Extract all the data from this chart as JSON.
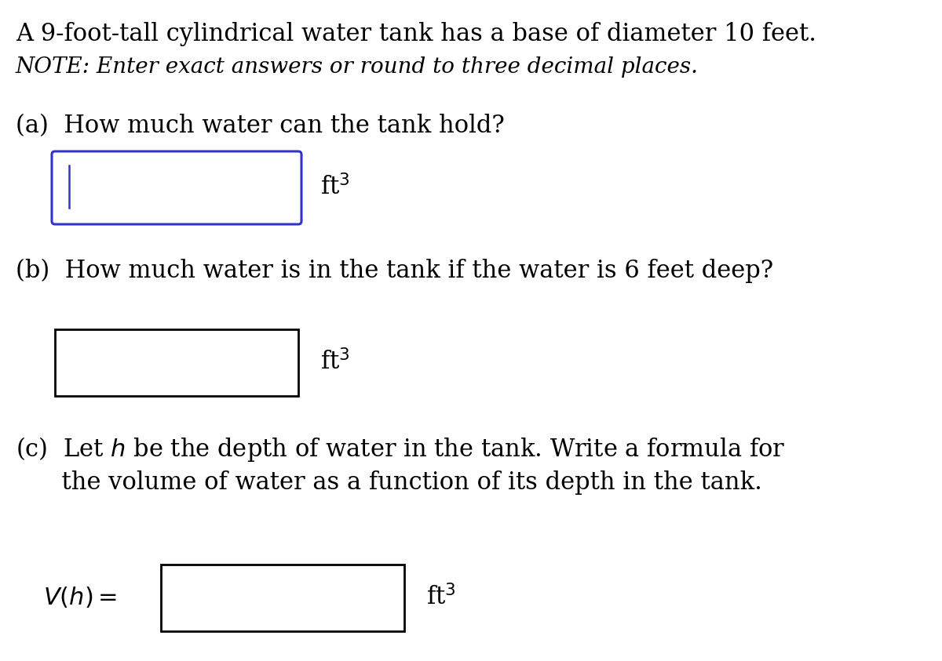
{
  "background_color": "#ffffff",
  "title_line1": "A 9-foot-tall cylindrical water tank has a base of diameter 10 feet.",
  "title_line2": "NOTE: Enter exact answers or round to three decimal places.",
  "part_a_label": "(a)  How much water can the tank hold?",
  "part_b_label": "(b)  How much water is in the tank if the water is 6 feet deep?",
  "part_c_label_line1": "(c)  Let $h$ be the depth of water in the tank. Write a formula for",
  "part_c_label_line2": "      the volume of water as a function of its depth in the tank.",
  "vh_label": "$V(h) =$",
  "ft3_label": "ft$^{3}$",
  "box_a_color": "#3333cc",
  "box_b_color": "#000000",
  "box_c_color": "#000000",
  "cursor_color": "#3333cc",
  "title_fontsize": 22,
  "note_fontsize": 20,
  "question_fontsize": 22,
  "ft3_fontsize": 22,
  "vh_fontsize": 22,
  "box_a_rounded": true,
  "box_b_rounded": false,
  "box_c_rounded": false
}
